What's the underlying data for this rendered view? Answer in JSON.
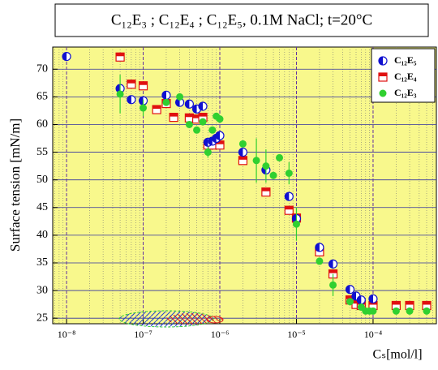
{
  "chart_data": {
    "type": "scatter",
    "title": "C₁₂E₃ ; C₁₂E₄ ; C₁₂E₅, 0.1M NaCl; t=20°C",
    "x_label": "Cₛ[mol/l]",
    "y_label": "Surface tension [mN/m]",
    "log_x": true,
    "grid": true,
    "legend": "top-right",
    "background": "#f8f88c",
    "xlim": [
      6.6e-09,
      0.00067
    ],
    "ylim": [
      24,
      74
    ],
    "xticks": [
      {
        "value": 1e-08,
        "label": "10⁻⁸"
      },
      {
        "value": 1e-07,
        "label": "10⁻⁷"
      },
      {
        "value": 1e-06,
        "label": "10⁻⁶"
      },
      {
        "value": 1e-05,
        "label": "10⁻⁵"
      },
      {
        "value": 0.0001,
        "label": "10⁻⁴"
      }
    ],
    "yticks": [
      25,
      30,
      35,
      40,
      45,
      50,
      55,
      60,
      65,
      70
    ],
    "series": [
      {
        "name": "C₁₂E₅",
        "color": "#1010d0",
        "marker": "half-circle",
        "x": [
          1e-08,
          5e-08,
          7e-08,
          1e-07,
          2e-07,
          3e-07,
          4e-07,
          5e-07,
          6e-07,
          7e-07,
          8e-07,
          9e-07,
          1e-06,
          2e-06,
          4e-06,
          8e-06,
          1e-05,
          2e-05,
          3e-05,
          5e-05,
          6e-05,
          7e-05,
          0.0001
        ],
        "values": [
          72.3,
          66.5,
          64.5,
          64.3,
          65.3,
          64,
          63.7,
          62.8,
          63.3,
          56.8,
          57,
          57.5,
          58,
          55,
          51.8,
          47,
          43,
          37.8,
          34.8,
          30.2,
          29,
          28.3,
          28.5
        ]
      },
      {
        "name": "C₁₂E₄",
        "color": "#e01010",
        "marker": "half-square",
        "x": [
          5e-08,
          7e-08,
          1e-07,
          1.5e-07,
          2e-07,
          2.5e-07,
          4e-07,
          5e-07,
          6e-07,
          7e-07,
          8e-07,
          1e-06,
          2e-06,
          4e-06,
          8e-06,
          1e-05,
          2e-05,
          3e-05,
          5e-05,
          6e-05,
          7e-05,
          0.0001,
          0.0002,
          0.0003,
          0.0005
        ],
        "values": [
          72.2,
          67.3,
          67,
          62.7,
          63.8,
          61.3,
          61.2,
          61,
          61.3,
          56.3,
          56.3,
          56.3,
          53.5,
          47.8,
          44.5,
          43.1,
          37,
          33,
          28.3,
          27.5,
          27.3,
          27.3,
          27.3,
          27.3,
          27.3
        ]
      },
      {
        "name": "C₁₂E₃",
        "color": "#30d030",
        "marker": "circle",
        "x": [
          5e-08,
          1e-07,
          2e-07,
          3e-07,
          4e-07,
          5e-07,
          6e-07,
          7e-07,
          8e-07,
          9e-07,
          1e-06,
          2e-06,
          3e-06,
          4e-06,
          5e-06,
          6e-06,
          8e-06,
          1e-05,
          2e-05,
          3e-05,
          5e-05,
          7e-05,
          8e-05,
          9e-05,
          0.0001,
          0.0002,
          0.0003,
          0.0005
        ],
        "values": [
          65.5,
          63,
          64,
          65,
          60,
          59,
          60.5,
          55,
          59,
          61.5,
          61,
          56.5,
          53.5,
          52.5,
          50.8,
          54,
          51.2,
          42,
          35.3,
          31,
          28,
          27,
          26.3,
          26.3,
          26.3,
          26.3,
          26.3,
          26.3
        ],
        "errors": [
          3.5,
          1.5,
          null,
          null,
          null,
          null,
          null,
          1,
          null,
          null,
          null,
          null,
          4,
          3,
          null,
          null,
          2,
          3,
          null,
          2,
          null,
          null,
          null,
          null,
          null,
          null,
          null,
          null
        ]
      }
    ]
  }
}
